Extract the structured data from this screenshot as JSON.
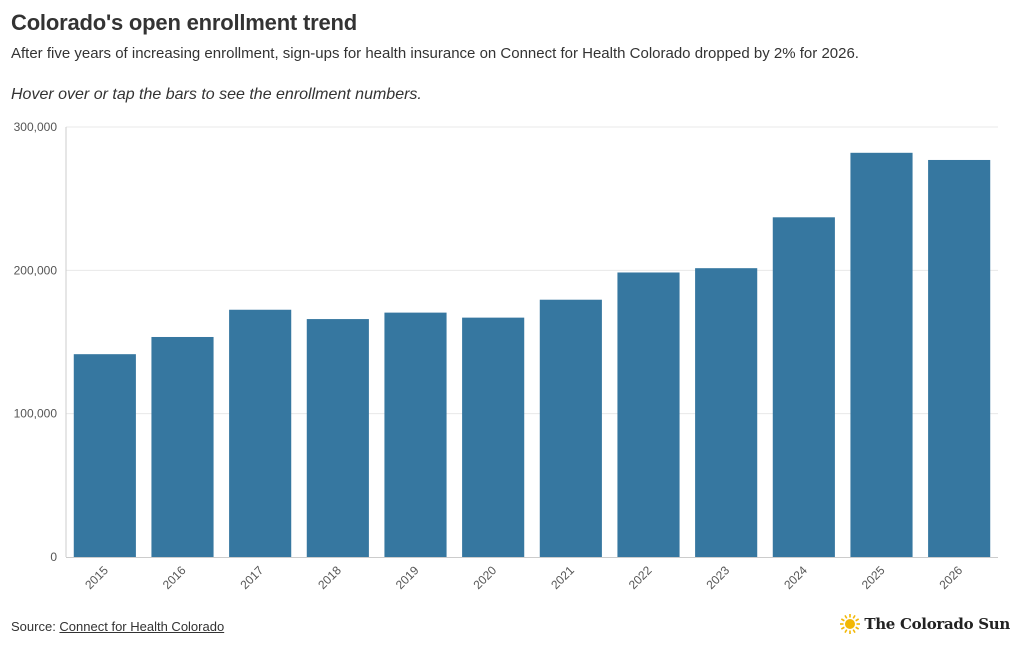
{
  "title": "Colorado's open enrollment trend",
  "subtitle": "After five years of increasing enrollment, sign-ups for health insurance on Connect for Health Colorado dropped by 2% for 2026.",
  "note": "Hover over or tap the bars to see the enrollment numbers.",
  "source": {
    "prefix": "Source: ",
    "link_text": "Connect for Health Colorado"
  },
  "brand": {
    "name": "The Colorado Sun",
    "logo_icon": "sun-icon",
    "logo_color": "#f2b705"
  },
  "colors": {
    "bar": "#3677a0",
    "grid": "#e8e8e8",
    "axis": "#cccccc"
  },
  "chart_data": {
    "type": "bar",
    "categories": [
      "2015",
      "2016",
      "2017",
      "2018",
      "2019",
      "2020",
      "2021",
      "2022",
      "2023",
      "2024",
      "2025",
      "2026"
    ],
    "values": [
      141500,
      153500,
      172500,
      166000,
      170500,
      167000,
      179500,
      198500,
      201500,
      237000,
      282000,
      277000
    ],
    "ylim": [
      0,
      300000
    ],
    "yticks": [
      0,
      100000,
      200000,
      300000
    ],
    "ytick_labels": [
      "0",
      "100,000",
      "200,000",
      "300,000"
    ],
    "xlabel": "",
    "ylabel": "",
    "grid": true,
    "legend": "none"
  }
}
